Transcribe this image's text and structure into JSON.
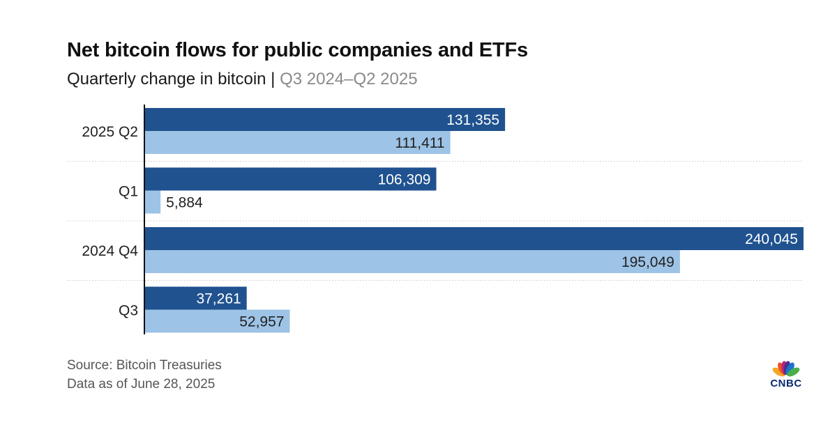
{
  "chart_data": {
    "type": "bar",
    "orientation": "horizontal",
    "title": "Net bitcoin flows for public companies and ETFs",
    "subtitle_main": "Quarterly change in bitcoin |",
    "subtitle_range": "Q3 2024–Q2 2025",
    "categories": [
      "2025 Q2",
      "Q1",
      "2024 Q4",
      "Q3"
    ],
    "series": [
      {
        "name": "Public companies",
        "color": "#20528f",
        "label_color": "#ffffff",
        "values": [
          131355,
          106309,
          240045,
          37261
        ],
        "labels": [
          "131,355",
          "106,309",
          "240,045",
          "37,261"
        ]
      },
      {
        "name": "ETFs",
        "color": "#9dc3e6",
        "label_color": "#222222",
        "values": [
          111411,
          5884,
          195049,
          52957
        ],
        "labels": [
          "111,411",
          "5,884",
          "195,049",
          "52,957"
        ]
      }
    ],
    "xlim": [
      0,
      240045
    ],
    "grid": false
  },
  "footer": {
    "source": "Source: Bitcoin Treasuries",
    "as_of": "Data as of June 28, 2025"
  },
  "logo": {
    "text": "CNBC",
    "feather_colors": [
      "#f5a623",
      "#e8502a",
      "#b3247c",
      "#4b2f8f",
      "#1a75c9",
      "#4cae4c"
    ]
  }
}
